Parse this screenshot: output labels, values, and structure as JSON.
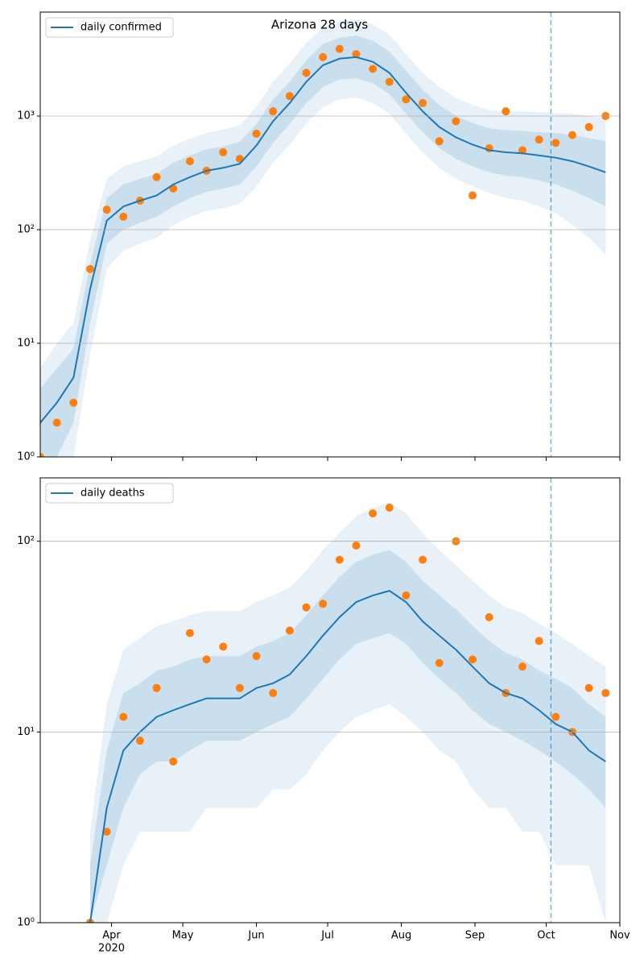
{
  "chart_data": [
    {
      "type": "line",
      "title": "Arizona 28 days",
      "log_y": true,
      "grid": true,
      "legend": "upper left",
      "x": [
        "2020-03-02",
        "2020-03-09",
        "2020-03-16",
        "2020-03-23",
        "2020-03-30",
        "2020-04-06",
        "2020-04-13",
        "2020-04-20",
        "2020-04-27",
        "2020-05-04",
        "2020-05-11",
        "2020-05-18",
        "2020-05-25",
        "2020-06-01",
        "2020-06-08",
        "2020-06-15",
        "2020-06-22",
        "2020-06-29",
        "2020-07-06",
        "2020-07-13",
        "2020-07-20",
        "2020-07-27",
        "2020-08-03",
        "2020-08-10",
        "2020-08-17",
        "2020-08-24",
        "2020-08-31",
        "2020-09-07",
        "2020-09-14",
        "2020-09-21",
        "2020-09-28",
        "2020-10-05",
        "2020-10-12",
        "2020-10-19",
        "2020-10-26"
      ],
      "series": [
        {
          "name": "daily confirmed",
          "color": "#1f77b4",
          "values": [
            2,
            3,
            5,
            30,
            120,
            160,
            180,
            200,
            250,
            290,
            330,
            350,
            380,
            550,
            900,
            1300,
            2000,
            2800,
            3200,
            3300,
            3000,
            2400,
            1600,
            1100,
            800,
            650,
            560,
            500,
            480,
            470,
            450,
            430,
            400,
            360,
            320
          ]
        }
      ],
      "points": {
        "color": "#ff7f0e",
        "values": [
          1,
          2,
          3,
          45,
          150,
          130,
          180,
          290,
          230,
          400,
          330,
          480,
          420,
          700,
          1100,
          1500,
          2400,
          3300,
          3900,
          3500,
          2600,
          2000,
          1400,
          1300,
          600,
          900,
          200,
          520,
          1100,
          500,
          620,
          580,
          680,
          800,
          1000
        ]
      },
      "bands": [
        {
          "color": "#1f77b4",
          "opacity": 0.1,
          "lower": [
            1,
            1,
            1,
            8,
            45,
            65,
            75,
            85,
            110,
            130,
            145,
            155,
            170,
            240,
            390,
            560,
            860,
            1200,
            1400,
            1450,
            1300,
            1050,
            700,
            480,
            350,
            280,
            240,
            210,
            190,
            180,
            160,
            140,
            110,
            85,
            60
          ],
          "upper": [
            6,
            10,
            15,
            80,
            280,
            360,
            400,
            440,
            550,
            630,
            710,
            760,
            830,
            1200,
            2000,
            2900,
            4400,
            6000,
            6800,
            7000,
            6400,
            5200,
            3500,
            2400,
            1800,
            1450,
            1250,
            1120,
            1100,
            1100,
            1080,
            1070,
            1050,
            1000,
            950
          ]
        },
        {
          "color": "#1f77b4",
          "opacity": 0.15,
          "lower": [
            1,
            1,
            2,
            15,
            75,
            100,
            115,
            130,
            160,
            190,
            215,
            230,
            250,
            360,
            580,
            850,
            1300,
            1800,
            2100,
            2150,
            1950,
            1550,
            1050,
            720,
            520,
            420,
            360,
            320,
            300,
            290,
            270,
            250,
            220,
            190,
            160
          ],
          "upper": [
            4,
            6,
            9,
            50,
            190,
            250,
            280,
            310,
            390,
            450,
            510,
            540,
            590,
            850,
            1400,
            2000,
            3100,
            4300,
            4900,
            5100,
            4600,
            3700,
            2500,
            1700,
            1250,
            1000,
            870,
            780,
            750,
            740,
            720,
            710,
            680,
            640,
            600
          ]
        }
      ],
      "vline": "2020-10-03",
      "xlim": [
        "2020-03-02",
        "2020-11-01"
      ],
      "xticks": [
        "2020-04-01",
        "2020-05-01",
        "2020-06-01",
        "2020-07-01",
        "2020-08-01",
        "2020-09-01",
        "2020-10-01",
        "2020-11-01"
      ],
      "ylim": [
        1,
        8220
      ],
      "yticks": [
        {
          "value": 1,
          "label": "10⁰"
        },
        {
          "value": 10,
          "label": "10¹"
        },
        {
          "value": 100,
          "label": "10²"
        },
        {
          "value": 1000,
          "label": "10³"
        }
      ]
    },
    {
      "type": "line",
      "log_y": true,
      "grid": true,
      "legend": "upper left",
      "x": [
        "2020-03-02",
        "2020-03-09",
        "2020-03-16",
        "2020-03-23",
        "2020-03-30",
        "2020-04-06",
        "2020-04-13",
        "2020-04-20",
        "2020-04-27",
        "2020-05-04",
        "2020-05-11",
        "2020-05-18",
        "2020-05-25",
        "2020-06-01",
        "2020-06-08",
        "2020-06-15",
        "2020-06-22",
        "2020-06-29",
        "2020-07-06",
        "2020-07-13",
        "2020-07-20",
        "2020-07-27",
        "2020-08-03",
        "2020-08-10",
        "2020-08-17",
        "2020-08-24",
        "2020-08-31",
        "2020-09-07",
        "2020-09-14",
        "2020-09-21",
        "2020-09-28",
        "2020-10-05",
        "2020-10-12",
        "2020-10-19",
        "2020-10-26"
      ],
      "series": [
        {
          "name": "daily deaths",
          "color": "#1f77b4",
          "values": [
            null,
            null,
            null,
            1,
            4,
            8,
            10,
            12,
            13,
            14,
            15,
            15,
            15,
            17,
            18,
            20,
            25,
            32,
            40,
            48,
            52,
            55,
            48,
            38,
            32,
            27,
            22,
            18,
            16,
            15,
            13,
            11,
            10,
            8,
            7
          ]
        }
      ],
      "points": {
        "color": "#ff7f0e",
        "values": [
          null,
          null,
          null,
          1,
          3,
          12,
          9,
          17,
          7,
          33,
          24,
          28,
          17,
          25,
          16,
          34,
          45,
          47,
          80,
          95,
          140,
          150,
          52,
          80,
          23,
          100,
          24,
          40,
          16,
          22,
          30,
          12,
          10,
          17,
          16
        ]
      },
      "bands": [
        {
          "color": "#1f77b4",
          "opacity": 0.1,
          "lower": [
            null,
            null,
            null,
            1,
            1,
            2,
            3,
            3,
            3,
            3,
            4,
            4,
            4,
            4,
            5,
            5,
            6,
            8,
            10,
            12,
            13,
            14,
            12,
            10,
            8,
            7,
            5,
            4,
            4,
            3,
            3,
            2,
            2,
            2,
            1
          ],
          "upper": [
            null,
            null,
            null,
            3,
            14,
            27,
            31,
            36,
            38,
            41,
            43,
            43,
            43,
            48,
            52,
            57,
            70,
            90,
            110,
            135,
            150,
            160,
            140,
            110,
            90,
            75,
            62,
            52,
            45,
            42,
            37,
            33,
            29,
            25,
            22
          ]
        },
        {
          "color": "#1f77b4",
          "opacity": 0.15,
          "lower": [
            null,
            null,
            null,
            1,
            2,
            4,
            6,
            7,
            7,
            8,
            9,
            9,
            9,
            10,
            11,
            12,
            15,
            19,
            24,
            29,
            31,
            33,
            29,
            23,
            19,
            16,
            13,
            11,
            10,
            9,
            8,
            7,
            6,
            5,
            4
          ],
          "upper": [
            null,
            null,
            null,
            2,
            8,
            16,
            18,
            21,
            22,
            24,
            25,
            25,
            25,
            28,
            30,
            33,
            41,
            52,
            65,
            78,
            85,
            90,
            78,
            62,
            52,
            44,
            36,
            30,
            26,
            24,
            21,
            19,
            17,
            14,
            12
          ]
        }
      ],
      "vline": "2020-10-03",
      "xlim": [
        "2020-03-02",
        "2020-11-01"
      ],
      "xticks": [
        {
          "value": "2020-04-01",
          "label": "Apr"
        },
        {
          "value": "2020-05-01",
          "label": "May"
        },
        {
          "value": "2020-06-01",
          "label": "Jun"
        },
        {
          "value": "2020-07-01",
          "label": "Jul"
        },
        {
          "value": "2020-08-01",
          "label": "Aug"
        },
        {
          "value": "2020-09-01",
          "label": "Sep"
        },
        {
          "value": "2020-10-01",
          "label": "Oct"
        },
        {
          "value": "2020-11-01",
          "label": "Nov"
        }
      ],
      "x_year_label": "2020",
      "ylim": [
        1,
        215
      ],
      "yticks": [
        {
          "value": 1,
          "label": "10⁰"
        },
        {
          "value": 10,
          "label": "10¹"
        },
        {
          "value": 100,
          "label": "10²"
        }
      ]
    }
  ]
}
